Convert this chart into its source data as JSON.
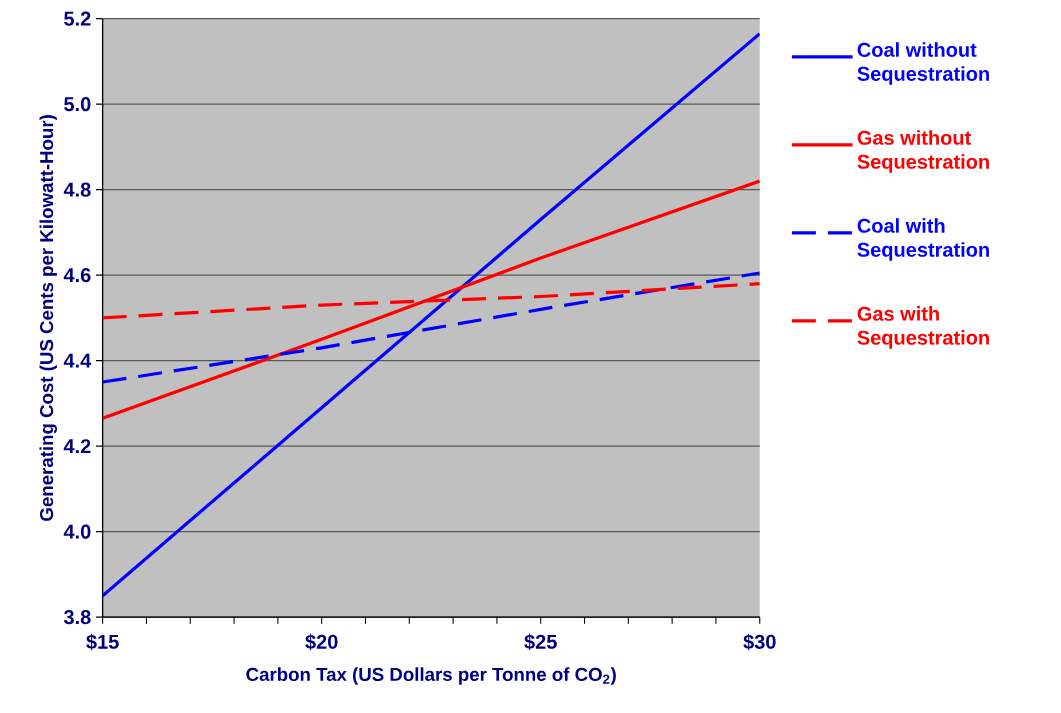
{
  "chart_data": {
    "type": "line",
    "xlabel": "Carbon Tax (US Dollars per Tonne of CO$_{2}$)",
    "ylabel": "Generating Cost (US Cents per Kilowatt-Hour)",
    "x": [
      15,
      20,
      25,
      30
    ],
    "series": [
      {
        "name": "Coal without Sequestration",
        "color": "#0000ff",
        "line_style": "solid",
        "values": [
          3.85,
          4.29,
          4.73,
          5.165
        ]
      },
      {
        "name": "Gas without Sequestration",
        "color": "#ff0000",
        "line_style": "solid",
        "values": [
          4.265,
          4.45,
          4.64,
          4.82
        ]
      },
      {
        "name": "Coal with Sequestration",
        "color": "#0000ff",
        "line_style": "dashed",
        "values": [
          4.35,
          4.43,
          4.52,
          4.605
        ]
      },
      {
        "name": "Gas with Sequestration",
        "color": "#ff0000",
        "line_style": "dashed",
        "values": [
          4.5,
          4.53,
          4.55,
          4.58
        ]
      }
    ],
    "xlim": [
      15,
      30
    ],
    "ylim": [
      3.8,
      5.2
    ],
    "xticks": [
      {
        "value": 15,
        "label": "$15"
      },
      {
        "value": 16,
        "label": null
      },
      {
        "value": 17,
        "label": null
      },
      {
        "value": 18,
        "label": null
      },
      {
        "value": 19,
        "label": null
      },
      {
        "value": 20,
        "label": "$20"
      },
      {
        "value": 21,
        "label": null
      },
      {
        "value": 22,
        "label": null
      },
      {
        "value": 23,
        "label": null
      },
      {
        "value": 24,
        "label": null
      },
      {
        "value": 25,
        "label": "$25"
      },
      {
        "value": 26,
        "label": null
      },
      {
        "value": 27,
        "label": null
      },
      {
        "value": 28,
        "label": null
      },
      {
        "value": 29,
        "label": null
      },
      {
        "value": 30,
        "label": "$30"
      }
    ],
    "yticks": [
      {
        "value": 3.8,
        "label": "3.8"
      },
      {
        "value": 4.0,
        "label": "4.0"
      },
      {
        "value": 4.2,
        "label": "4.2"
      },
      {
        "value": 4.4,
        "label": "4.4"
      },
      {
        "value": 4.6,
        "label": "4.6"
      },
      {
        "value": 4.8,
        "label": "4.8"
      },
      {
        "value": 5.0,
        "label": "5.0"
      },
      {
        "value": 5.2,
        "label": "5.2"
      }
    ],
    "grid": "y",
    "legend": "right"
  }
}
